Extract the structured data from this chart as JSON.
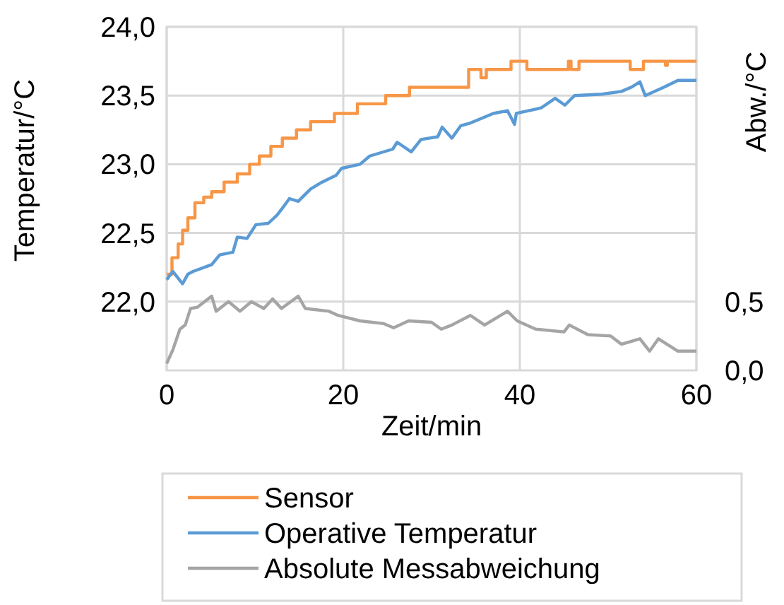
{
  "chart_data": {
    "type": "line",
    "xlabel": "Zeit/min",
    "ylabel": "Temperatur/°C",
    "y2label": "Abw./°C",
    "xlim": [
      0,
      60
    ],
    "xticks": [
      0,
      20,
      40,
      60
    ],
    "ylim": [
      21.5,
      24
    ],
    "yticks": [
      {
        "value": 22,
        "label": "22,0"
      },
      {
        "value": 22.5,
        "label": "22,5"
      },
      {
        "value": 23,
        "label": "23,0"
      },
      {
        "value": 23.5,
        "label": "23,5"
      },
      {
        "value": 24,
        "label": "24,0"
      }
    ],
    "y2lim": [
      0,
      2.5
    ],
    "y2ticks": [
      {
        "value": 0,
        "label": "0,0"
      },
      {
        "value": 0.5,
        "label": "0,5"
      }
    ],
    "grid": true,
    "legend": "bottom",
    "series": [
      {
        "name": "Sensor",
        "color": "#f79646",
        "type": "step",
        "x": [
          0,
          0.6,
          1.3,
          1.8,
          2.4,
          3.2,
          4.2,
          5.1,
          6.5,
          8,
          9.4,
          10.5,
          11.8,
          13.1,
          14.7,
          16.3,
          19,
          21.6,
          24.8,
          27.5,
          34.2,
          35.6,
          36.2,
          39,
          40.8,
          45.5,
          45.8,
          46.7,
          52.5,
          54,
          56.5,
          56.7,
          60
        ],
        "values": [
          22.2,
          22.32,
          22.42,
          22.52,
          22.61,
          22.72,
          22.76,
          22.8,
          22.87,
          22.93,
          23.0,
          23.06,
          23.13,
          23.19,
          23.25,
          23.31,
          23.37,
          23.44,
          23.5,
          23.56,
          23.69,
          23.63,
          23.69,
          23.75,
          23.69,
          23.75,
          23.69,
          23.75,
          23.69,
          23.75,
          23.72,
          23.75,
          23.75
        ]
      },
      {
        "name": "Operative Temperatur",
        "color": "#5b9bd5",
        "x": [
          0,
          0.7,
          1.8,
          2.4,
          3,
          5.1,
          6,
          7.5,
          8,
          9.1,
          10.1,
          11.5,
          12.5,
          13.1,
          13.9,
          14.9,
          16.3,
          17.6,
          19.2,
          19.8,
          21.9,
          23,
          25.6,
          26.1,
          27.7,
          28.8,
          30.7,
          31.2,
          32.3,
          33.3,
          34.4,
          37,
          38.6,
          39.4,
          39.6,
          42.4,
          44,
          45.1,
          46.2,
          49.3,
          51.5,
          52.6,
          53.6,
          54.2,
          56.3,
          57.9,
          60
        ],
        "values": [
          22.16,
          22.22,
          22.13,
          22.2,
          22.22,
          22.27,
          22.34,
          22.36,
          22.47,
          22.46,
          22.56,
          22.57,
          22.63,
          22.68,
          22.75,
          22.73,
          22.82,
          22.87,
          22.92,
          22.97,
          23.0,
          23.06,
          23.11,
          23.16,
          23.09,
          23.18,
          23.2,
          23.27,
          23.19,
          23.28,
          23.3,
          23.37,
          23.39,
          23.29,
          23.37,
          23.41,
          23.48,
          23.43,
          23.5,
          23.51,
          23.53,
          23.56,
          23.6,
          23.5,
          23.56,
          23.61,
          23.61
        ]
      },
      {
        "name": "Absolute Messabweichung",
        "color": "#a5a5a5",
        "axis": "y2",
        "x": [
          0,
          0.7,
          1.5,
          2.1,
          2.7,
          3.5,
          5.1,
          5.6,
          7,
          8.3,
          9.6,
          11,
          12,
          13,
          14.9,
          15.7,
          18.4,
          19.4,
          21.9,
          24.6,
          25.7,
          27.4,
          30,
          31.1,
          32.3,
          34.4,
          36,
          38.6,
          39.7,
          41.8,
          45,
          45.6,
          47.7,
          50.3,
          51.5,
          53.6,
          54.7,
          55.7,
          57.9,
          60
        ],
        "values": [
          0.05,
          0.15,
          0.3,
          0.33,
          0.45,
          0.46,
          0.54,
          0.43,
          0.5,
          0.43,
          0.5,
          0.45,
          0.52,
          0.45,
          0.54,
          0.45,
          0.43,
          0.4,
          0.36,
          0.34,
          0.31,
          0.36,
          0.35,
          0.3,
          0.33,
          0.4,
          0.33,
          0.43,
          0.36,
          0.3,
          0.28,
          0.33,
          0.26,
          0.25,
          0.19,
          0.23,
          0.14,
          0.23,
          0.14,
          0.14
        ]
      }
    ]
  }
}
